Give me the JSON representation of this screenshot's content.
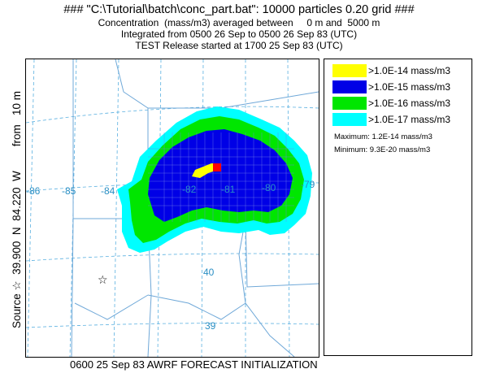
{
  "header": {
    "title": "### \"C:\\Tutorial\\batch\\conc_part.bat\": 10000 particles 0.20 grid ###",
    "line2": "Concentration  (mass/m3) averaged between     0 m and  5000 m",
    "line3": "Integrated from 0500 26 Sep to 0500 26 Sep 83 (UTC)",
    "line4": "TEST Release started at 1700 25 Sep 83 (UTC)"
  },
  "side_label": "Source ☆  39.900  N  84.220  W        from   10 m",
  "map": {
    "longitude_labels": [
      "-86",
      "-85",
      "-84",
      "-82",
      "-81",
      "-80",
      "-79"
    ],
    "latitude_labels": [
      "40",
      "39"
    ],
    "source_marker_icon": "star-outline-icon",
    "grid_color": "#5ab0e0",
    "border_color": "#6fa8d8"
  },
  "legend": {
    "items": [
      {
        "label": ">1.0E-14 mass/m3",
        "color": "#ffff00"
      },
      {
        "label": ">1.0E-15 mass/m3",
        "color": "#0000e6"
      },
      {
        "label": ">1.0E-16 mass/m3",
        "color": "#00e600"
      },
      {
        "label": ">1.0E-17 mass/m3",
        "color": "#00ffff"
      }
    ],
    "maximum": "Maximum: 1.2E-14 mass/m3",
    "minimum": "Minimum: 9.3E-20 mass/m3",
    "peak_marker_color": "#ff0000"
  },
  "footer": {
    "text": "0600 25 Sep 83 AWRF FORECAST INITIALIZATION"
  }
}
